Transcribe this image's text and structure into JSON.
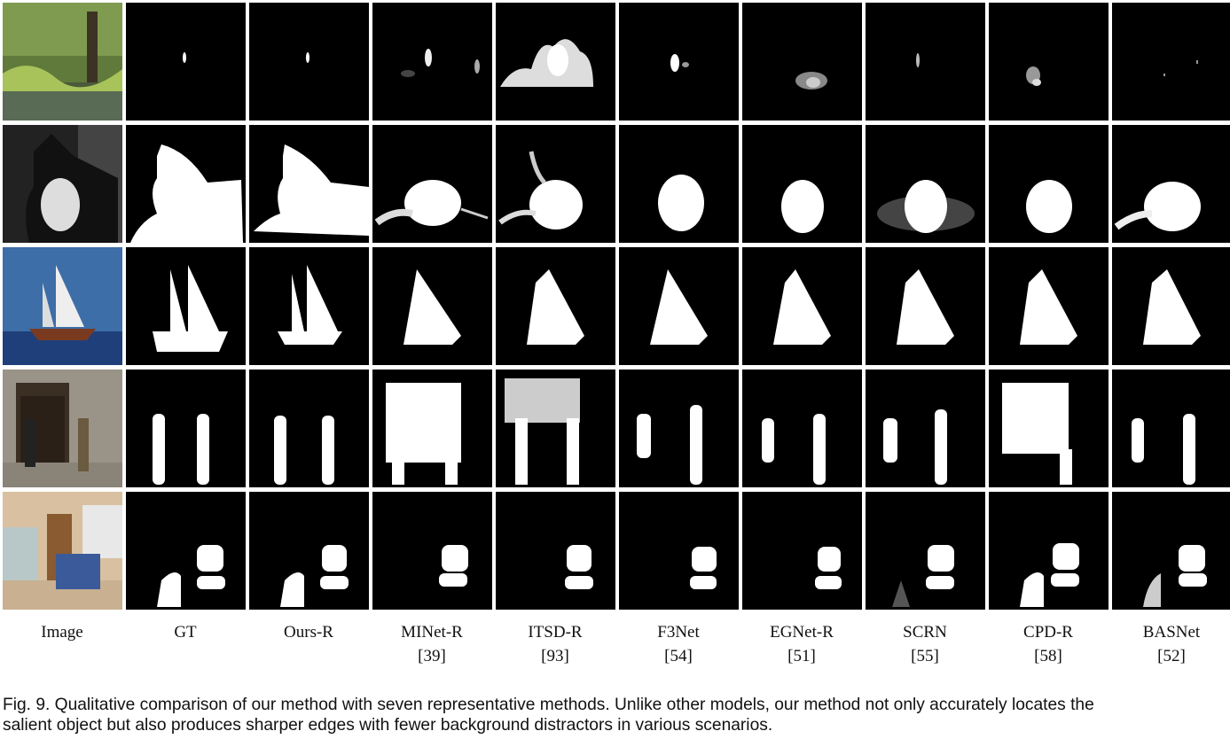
{
  "figure": {
    "columns": [
      {
        "name": "Image",
        "ref": ""
      },
      {
        "name": "GT",
        "ref": ""
      },
      {
        "name": "Ours-R",
        "ref": ""
      },
      {
        "name": "MINet-R",
        "ref": "[39]"
      },
      {
        "name": "ITSD-R",
        "ref": "[93]"
      },
      {
        "name": "F3Net",
        "ref": "[54]"
      },
      {
        "name": "EGNet-R",
        "ref": "[51]"
      },
      {
        "name": "SCRN",
        "ref": "[55]"
      },
      {
        "name": "CPD-R",
        "ref": "[58]"
      },
      {
        "name": "BASNet",
        "ref": "[52]"
      }
    ],
    "rows": [
      "heron-in-marsh",
      "cat",
      "sailboat",
      "walking-people",
      "lab-chairs"
    ],
    "caption_line1": "Fig. 9. Qualitative comparison of our method with seven representative methods. Unlike other models, our method not only accurately locates the",
    "caption_line2": "salient object but also produces sharper edges with fewer background distractors in various scenarios."
  },
  "colors": {
    "mask_background": "#000000",
    "mask_foreground": "#ffffff"
  }
}
